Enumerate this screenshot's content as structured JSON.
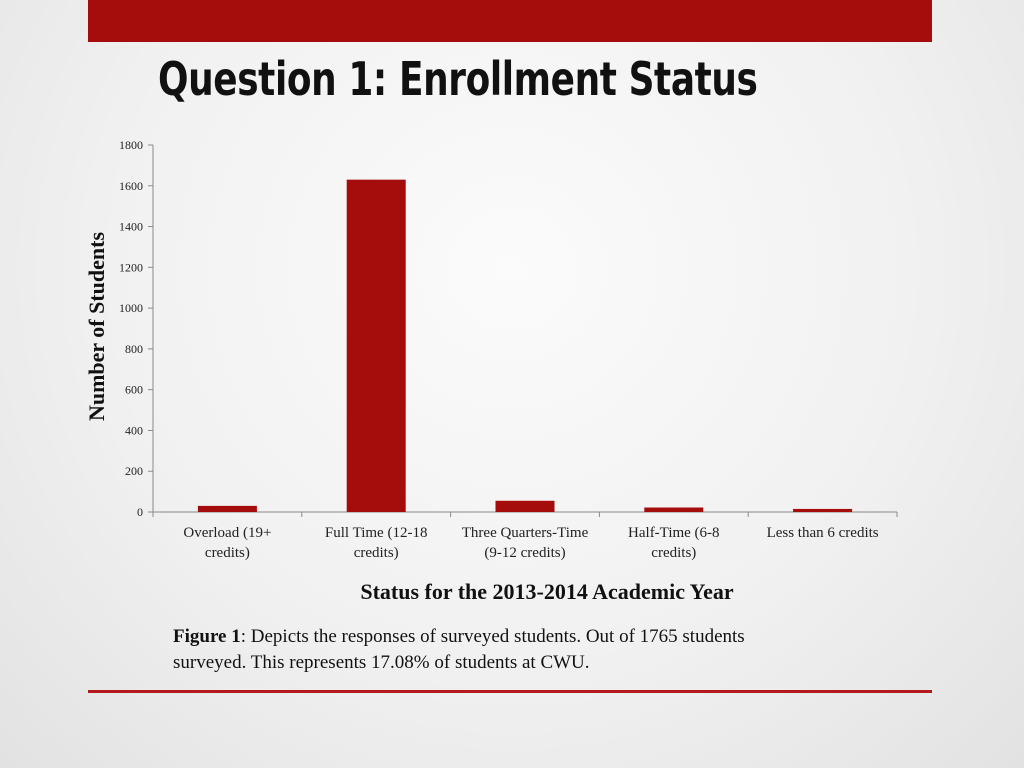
{
  "slide": {
    "title": "Question 1: Enrollment Status",
    "accent_color": "#a50c0c"
  },
  "caption": {
    "label": "Figure 1",
    "text": ": Depicts the responses of surveyed students. Out of 1765 students surveyed. This represents 17.08% of students at CWU."
  },
  "chart_data": {
    "type": "bar",
    "xlabel": "Status for the 2013-2014 Academic Year",
    "ylabel": "Number of Students",
    "ylim": [
      0,
      1800
    ],
    "yticks": [
      0,
      200,
      400,
      600,
      800,
      1000,
      1200,
      1400,
      1600,
      1800
    ],
    "grid": false,
    "bar_color": "#a50c0c",
    "categories": [
      [
        "Overload (19+",
        "credits)"
      ],
      [
        "Full Time (12-18",
        "credits)"
      ],
      [
        "Three Quarters-Time",
        "(9-12 credits)"
      ],
      [
        "Half-Time (6-8",
        "credits)"
      ],
      [
        "Less than 6 credits"
      ]
    ],
    "values": [
      30,
      1630,
      55,
      22,
      15
    ]
  }
}
